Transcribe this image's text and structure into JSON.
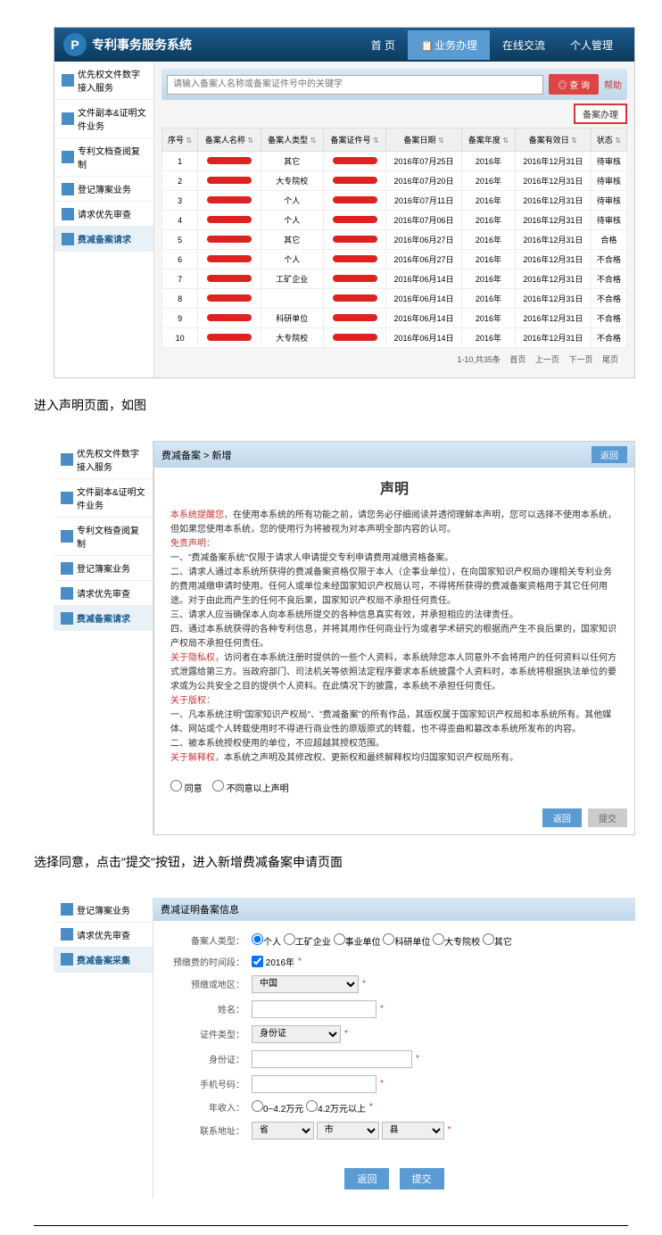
{
  "app": {
    "title": "专利事务服务系统"
  },
  "nav": {
    "home": "首 页",
    "business": "业务办理",
    "online": "在线交流",
    "personal": "个人管理"
  },
  "sidebar": {
    "items": [
      "优先权文件数字接入服务",
      "文件副本&证明文件业务",
      "专利文档查阅复制",
      "登记簿案业务",
      "请求优先审查",
      "费减备案请求"
    ]
  },
  "search": {
    "placeholder": "请输入备案人名称或备案证件号中的关键字",
    "btn": "◎ 查 询",
    "help": "帮助"
  },
  "toolbar": {
    "action": "备案办理"
  },
  "table": {
    "columns": [
      "序号",
      "备案人名称",
      "备案人类型",
      "备案证件号",
      "备案日期",
      "备案年度",
      "备案有效日",
      "状态"
    ],
    "rows": [
      {
        "idx": "1",
        "type": "其它",
        "date": "2016年07月25日",
        "year": "2016年",
        "valid": "2016年12月31日",
        "status": "待审核"
      },
      {
        "idx": "2",
        "type": "大专院校",
        "date": "2016年07月20日",
        "year": "2016年",
        "valid": "2016年12月31日",
        "status": "待审核"
      },
      {
        "idx": "3",
        "type": "个人",
        "date": "2016年07月11日",
        "year": "2016年",
        "valid": "2016年12月31日",
        "status": "待审核"
      },
      {
        "idx": "4",
        "type": "个人",
        "date": "2016年07月06日",
        "year": "2016年",
        "valid": "2016年12月31日",
        "status": "待审核"
      },
      {
        "idx": "5",
        "type": "其它",
        "date": "2016年06月27日",
        "year": "2016年",
        "valid": "2016年12月31日",
        "status": "合格"
      },
      {
        "idx": "6",
        "type": "个人",
        "date": "2016年06月27日",
        "year": "2016年",
        "valid": "2016年12月31日",
        "status": "不合格"
      },
      {
        "idx": "7",
        "type": "工矿企业",
        "date": "2016年06月14日",
        "year": "2016年",
        "valid": "2016年12月31日",
        "status": "不合格"
      },
      {
        "idx": "8",
        "type": "",
        "date": "2016年06月14日",
        "year": "2016年",
        "valid": "2016年12月31日",
        "status": "不合格"
      },
      {
        "idx": "9",
        "type": "科研单位",
        "date": "2016年06月14日",
        "year": "2016年",
        "valid": "2016年12月31日",
        "status": "不合格"
      },
      {
        "idx": "10",
        "type": "大专院校",
        "date": "2016年06月14日",
        "year": "2016年",
        "valid": "2016年12月31日",
        "status": "不合格"
      }
    ]
  },
  "pager": {
    "info": "1-10,共35条",
    "first": "首页",
    "prev": "上一页",
    "next": "下一页",
    "last": "尾页"
  },
  "instr1": "进入声明页面，如图",
  "instr2": "选择同意，点击\"提交\"按钮，进入新增费减备案申请页面",
  "stmt": {
    "breadcrumb": "费减备案 > 新增",
    "back": "返回",
    "title": "声明",
    "warn_label": "本系统提醒您，",
    "warn_text": "在使用本系统的所有功能之前，请您务必仔细阅读并透彻理解本声明，您可以选择不使用本系统，但如果您使用本系统，您的使用行为将被视为对本声明全部内容的认可。",
    "free_label": "免责声明：",
    "p1": "一、\"费减备案系统\"仅限于请求人申请提交专利申请费用减缴资格备案。",
    "p2": "二、请求人通过本系统所获得的费减备案资格仅限于本人（企事业单位），在向国家知识产权局办理相关专利业务的费用减缴申请时使用。任何人或单位未经国家知识产权局认可，不得将所获得的费减备案资格用于其它任何用途。对于由此而产生的任何不良后果，国家知识产权局不承担任何责任。",
    "p3": "三、请求人应当确保本人向本系统所提交的各种信息真实有效，并承担相应的法律责任。",
    "p4": "四、通过本系统获得的各种专利信息，并将其用作任何商业行为或者学术研究的根据而产生不良后果的，国家知识产权局不承担任何责任。",
    "priv_label": "关于隐私权，",
    "priv_text": "访问者在本系统注册时提供的一些个人资料，本系统除您本人同意外不会将用户的任何资料以任何方式泄露给第三方。当政府部门、司法机关等依照法定程序要求本系统披露个人资料时，本系统将根据执法单位的要求或为公共安全之目的提供个人资料。在此情况下的披露，本系统不承担任何责任。",
    "copy_label": "关于版权：",
    "c1": "一、凡本系统注明\"国家知识产权局\"、\"费减备案\"的所有作品，其版权属于国家知识产权局和本系统所有。其他媒体、网站或个人转载使用时不得进行商业性的原版原式的转载，也不得歪曲和篡改本系统所发布的内容。",
    "c2": "二、被本系统授权使用的单位，不应超越其授权范围。",
    "exp_label": "关于解释权，",
    "exp_text": "本系统之声明及其修改权、更新权和最终解释权均归国家知识产权局所有。",
    "agree": "同意",
    "disagree": "不同意以上声明",
    "btn_back": "返回",
    "btn_submit": "提交"
  },
  "sidebar2": {
    "items": [
      "登记簿案业务",
      "请求优先审查",
      "费减备案采集"
    ]
  },
  "form": {
    "header": "费减证明备案信息",
    "labels": {
      "type": "备案人类型：",
      "year": "预缴费的时间段：",
      "country": "预缴或地区：",
      "name": "姓名：",
      "idtype": "证件类型：",
      "idno": "身份证：",
      "phone": "手机号码：",
      "income": "年收入：",
      "contact": "联系地址："
    },
    "type_opts": [
      "个人",
      "工矿企业",
      "事业单位",
      "科研单位",
      "大专院校",
      "其它"
    ],
    "year_val": "2016年",
    "country_val": "中国",
    "idtype_val": "身份证",
    "income_opts": [
      "0~4.2万元",
      "4.2万元以上"
    ],
    "contact_sel": [
      "省",
      "市",
      "县"
    ],
    "btn_back": "返回",
    "btn_submit": "提交"
  }
}
